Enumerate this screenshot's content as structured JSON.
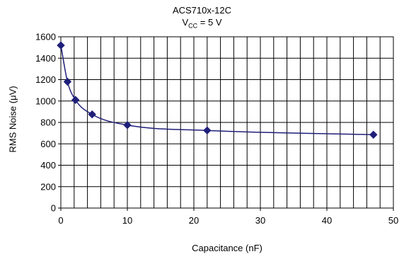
{
  "chart_data": {
    "type": "line",
    "title_line1": "ACS710x-12C",
    "title_line2_prefix": "V",
    "title_line2_sub": "CC",
    "title_line2_suffix": " = 5 V",
    "xlabel": "Capacitance (nF)",
    "ylabel": "RMS Noise (μV)",
    "xlim": [
      0,
      50
    ],
    "ylim": [
      0,
      1600
    ],
    "x_ticks": [
      0,
      10,
      20,
      30,
      40,
      50
    ],
    "y_ticks": [
      0,
      200,
      400,
      600,
      800,
      1000,
      1200,
      1400,
      1600
    ],
    "x_minor_step": 2,
    "grid": true,
    "series": [
      {
        "x": [
          0,
          1,
          2.2,
          4.7,
          10,
          22,
          47
        ],
        "values": [
          1520,
          1180,
          1010,
          875,
          775,
          725,
          685
        ]
      }
    ],
    "colors": {
      "series": "#1f1f7a",
      "grid": "#000000"
    }
  }
}
